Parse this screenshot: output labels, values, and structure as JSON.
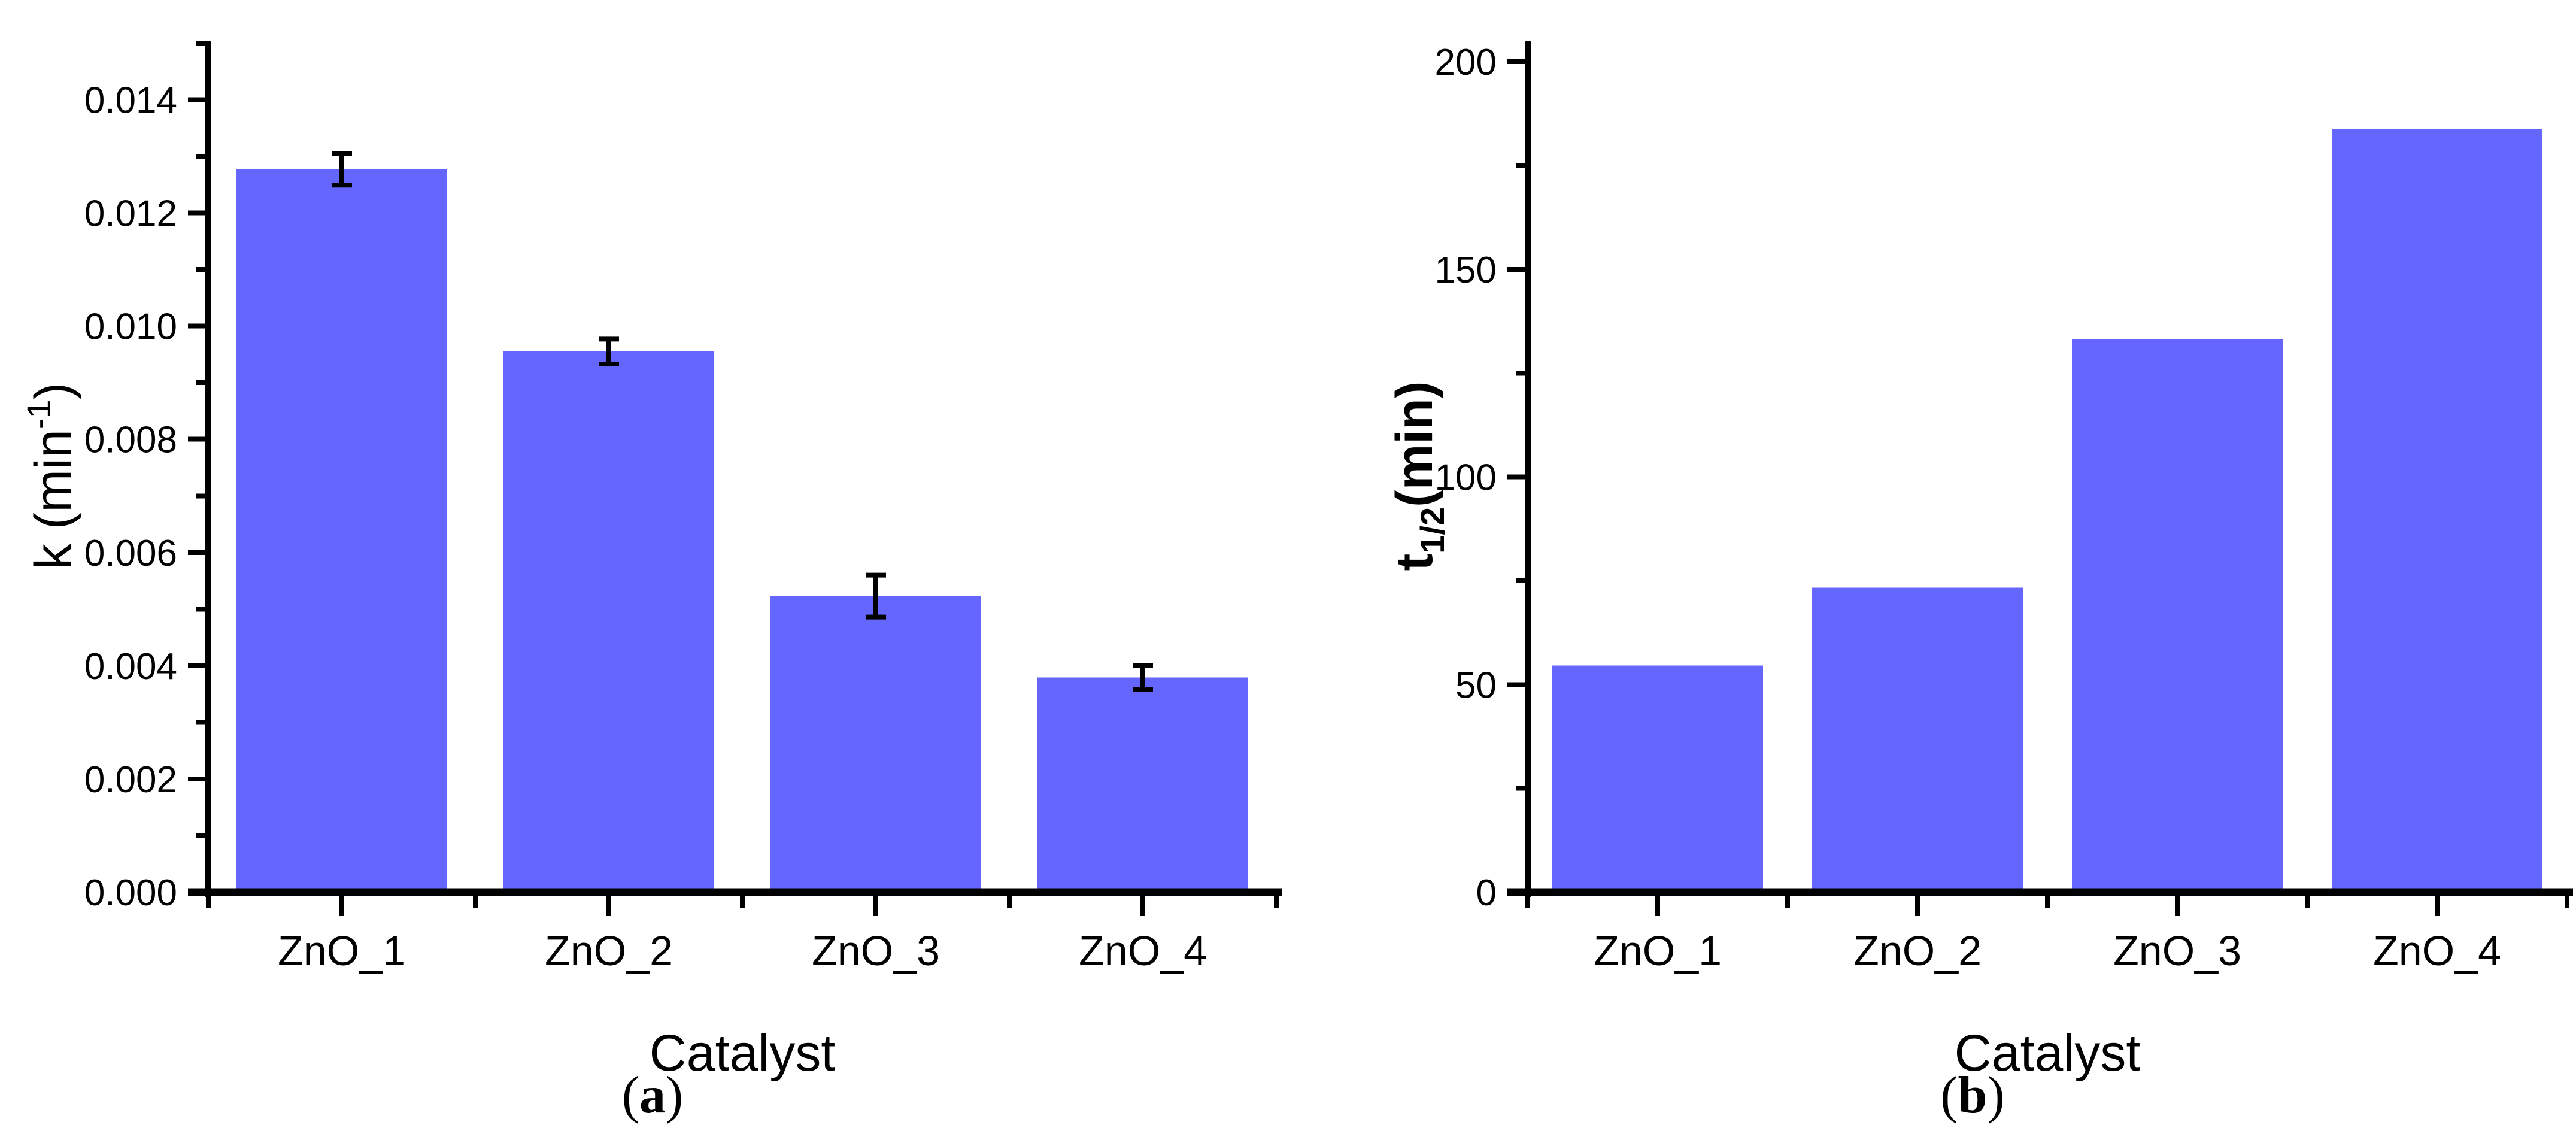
{
  "figure": {
    "background": "#ffffff",
    "panels": [
      {
        "id": "a",
        "label": "(a)",
        "label_open": "(",
        "label_letter": "a",
        "label_close": ")",
        "xlabel": "Catalyst"
      },
      {
        "id": "b",
        "label": "(b)",
        "label_open": "(",
        "label_letter": "b",
        "label_close": ")",
        "xlabel": "Catalyst"
      }
    ]
  },
  "style": {
    "bar_color": "#6466fe",
    "axis_color": "#000000",
    "text_color": "#000000"
  },
  "chart_data": [
    {
      "type": "bar",
      "panel": "a",
      "title": "",
      "categories": [
        "ZnO_1",
        "ZnO_2",
        "ZnO_3",
        "ZnO_4"
      ],
      "values": [
        0.01277,
        0.00955,
        0.00523,
        0.00379
      ],
      "errors": [
        0.00028,
        0.00022,
        0.00037,
        0.00021
      ],
      "xlabel": "Catalyst",
      "ylabel": "k (min⁻¹)",
      "ylabel_parts": [
        {
          "text": "k (min"
        },
        {
          "text": "-1",
          "script": "sup"
        },
        {
          "text": ")"
        }
      ],
      "ylabel_bold": false,
      "ylim": [
        0,
        0.015
      ],
      "ytick_values": [
        0,
        0.002,
        0.004,
        0.006,
        0.008,
        0.01,
        0.012,
        0.014
      ],
      "ytick_labels": [
        "0.000",
        "0.002",
        "0.004",
        "0.006",
        "0.008",
        "0.010",
        "0.012",
        "0.014"
      ],
      "yminor_values": [
        0.001,
        0.003,
        0.005,
        0.007,
        0.009,
        0.011,
        0.013,
        0.015
      ],
      "grid": false,
      "legend": null
    },
    {
      "type": "bar",
      "panel": "b",
      "title": "",
      "categories": [
        "ZnO_1",
        "ZnO_2",
        "ZnO_3",
        "ZnO_4"
      ],
      "values": [
        54.6,
        73.3,
        133.2,
        183.8
      ],
      "errors": null,
      "xlabel": "Catalyst",
      "ylabel": "t1/2(min)",
      "ylabel_parts": [
        {
          "text": "t"
        },
        {
          "text": "1/2",
          "script": "sub"
        },
        {
          "text": "(min)"
        }
      ],
      "ylabel_bold": true,
      "ylim": [
        0,
        204.5
      ],
      "ytick_values": [
        0,
        50,
        100,
        150,
        200
      ],
      "ytick_labels": [
        "0",
        "50",
        "100",
        "150",
        "200"
      ],
      "yminor_values": [
        25,
        75,
        125,
        175
      ],
      "grid": false,
      "legend": null
    }
  ]
}
